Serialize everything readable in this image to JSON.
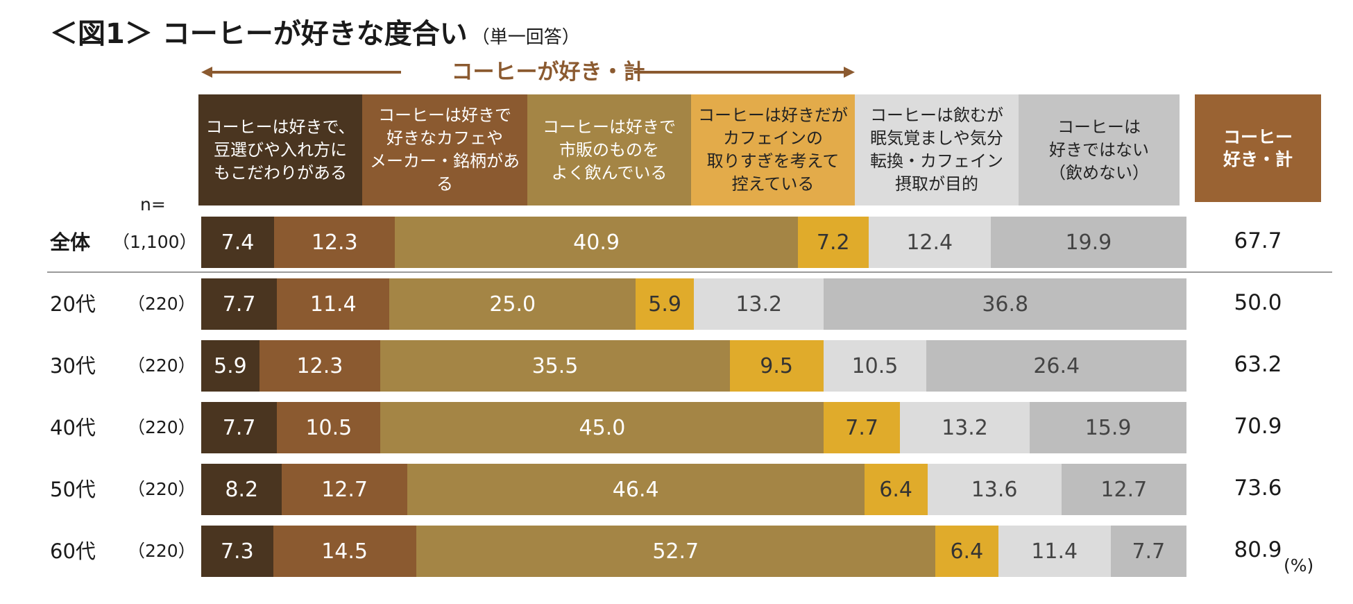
{
  "chart_data": {
    "type": "bar",
    "orientation": "horizontal-stacked",
    "title": "＜図1＞ コーヒーが好きな度合い",
    "subtitle": "（単一回答）",
    "span_label": "コーヒーが好き・計",
    "n_label": "n=",
    "unit_label": "(%)",
    "total_header": "コーヒー\n好き・計",
    "series": [
      {
        "name": "コーヒーは好きで、\n豆選びや入れ方に\nもこだわりがある",
        "color": "#4a3520",
        "text_color": "#ffffff",
        "header_text_color": "#ffffff"
      },
      {
        "name": "コーヒーは好きで\n好きなカフェや\nメーカー・銘柄がある",
        "color": "#8b5a30",
        "text_color": "#ffffff",
        "header_text_color": "#ffffff"
      },
      {
        "name": "コーヒーは好きで\n市販のものを\nよく飲んでいる",
        "color": "#a48545",
        "text_color": "#ffffff",
        "header_text_color": "#ffffff"
      },
      {
        "name": "コーヒーは好きだが\nカフェインの\n取りすぎを考えて\n控えている",
        "color": "#e0ab2b",
        "text_color": "#333333",
        "header_text_color": "#222222"
      },
      {
        "name": "コーヒーは飲むが\n眠気覚ましや気分\n転換・カフェイン\n摂取が目的",
        "color": "#dcdcdc",
        "text_color": "#444444",
        "header_text_color": "#222222"
      },
      {
        "name": "コーヒーは\n好きではない\n（飲めない）",
        "color": "#bdbdbd",
        "text_color": "#444444",
        "header_text_color": "#222222"
      }
    ],
    "header_bg_colors": [
      "#4a3520",
      "#8b5a30",
      "#a48545",
      "#e3ab4a",
      "#dcdcdc",
      "#c4c4c4"
    ],
    "total_color": "#9a6333",
    "arrow_color": "#8b5a30",
    "rows": [
      {
        "label": "全体",
        "n": "（1,100）",
        "bold": true,
        "values": [
          7.4,
          12.3,
          40.9,
          7.2,
          12.4,
          19.9
        ],
        "total": 67.7
      },
      {
        "label": "20代",
        "n": "（220）",
        "bold": false,
        "values": [
          7.7,
          11.4,
          25.0,
          5.9,
          13.2,
          36.8
        ],
        "total": 50.0
      },
      {
        "label": "30代",
        "n": "（220）",
        "bold": false,
        "values": [
          5.9,
          12.3,
          35.5,
          9.5,
          10.5,
          26.4
        ],
        "total": 63.2
      },
      {
        "label": "40代",
        "n": "（220）",
        "bold": false,
        "values": [
          7.7,
          10.5,
          45.0,
          7.7,
          13.2,
          15.9
        ],
        "total": 70.9
      },
      {
        "label": "50代",
        "n": "（220）",
        "bold": false,
        "values": [
          8.2,
          12.7,
          46.4,
          6.4,
          13.6,
          12.7
        ],
        "total": 73.6
      },
      {
        "label": "60代",
        "n": "（220）",
        "bold": false,
        "values": [
          7.3,
          14.5,
          52.7,
          6.4,
          11.4,
          7.7
        ],
        "total": 80.9
      }
    ],
    "xlim": [
      0,
      100
    ]
  }
}
